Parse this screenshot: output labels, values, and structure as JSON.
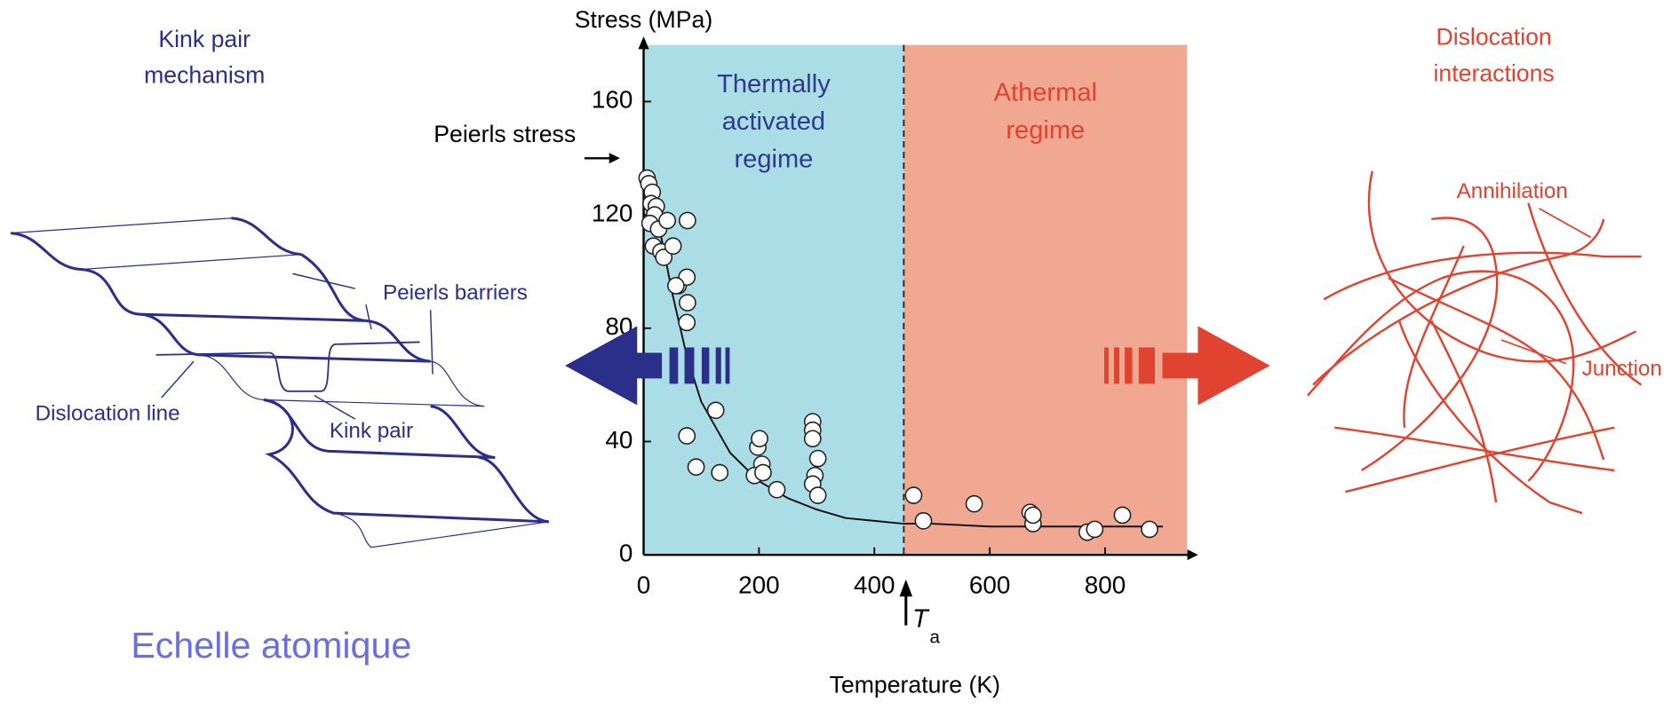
{
  "chart_data": {
    "type": "scatter",
    "y_label": "Stress (MPa)",
    "x_label": "Temperature (K)",
    "xlim": [
      0,
      950
    ],
    "ylim": [
      0,
      180
    ],
    "xticks": [
      0,
      200,
      400,
      600,
      800
    ],
    "yticks": [
      0,
      40,
      80,
      120,
      160
    ],
    "regions": [
      {
        "label": [
          "Thermally",
          "activated",
          "regime"
        ],
        "xlim": [
          0,
          451
        ],
        "color": "#abdde7",
        "text_color": "#2e3a8c"
      },
      {
        "label": [
          "Athermal",
          "regime"
        ],
        "xlim": [
          451,
          942
        ],
        "color": "#f0a893",
        "text_color": "#e0432f"
      }
    ],
    "annotations": [
      {
        "text": "Peierls stress",
        "y": 140
      },
      {
        "text": "T",
        "sub": "a",
        "x": 451
      }
    ],
    "points": {
      "color": "#ffffff",
      "x": [
        6,
        9,
        15,
        13,
        22,
        19,
        11,
        26,
        41,
        17,
        30,
        35,
        51,
        76,
        60,
        75,
        76,
        75,
        56,
        125,
        75,
        91,
        132,
        198,
        201,
        205,
        192,
        207,
        231,
        293,
        293,
        293,
        297,
        302,
        293,
        302,
        468,
        485,
        573,
        670,
        675,
        675,
        769,
        782,
        830,
        877
      ],
      "y": [
        133,
        131,
        128,
        124,
        123,
        120,
        117,
        115,
        118,
        109,
        107,
        105,
        109,
        118,
        95,
        98,
        89,
        82,
        95,
        51,
        42,
        31,
        29,
        38,
        41,
        32,
        28,
        29,
        23,
        47,
        44,
        41,
        28,
        34,
        25,
        21,
        21,
        12,
        18,
        15,
        11,
        14,
        8,
        9,
        14,
        9
      ]
    },
    "curve": {
      "color": "#111111",
      "x": [
        5,
        25,
        50,
        75,
        100,
        150,
        200,
        250,
        300,
        350,
        400,
        450,
        500,
        600,
        700,
        800,
        900
      ],
      "y": [
        135,
        118,
        92,
        70,
        54,
        36,
        26,
        20,
        16,
        13,
        12,
        11,
        11,
        10,
        10,
        10,
        10
      ]
    }
  },
  "left_panel": {
    "title": [
      "Kink pair",
      "mechanism"
    ],
    "labels": [
      "Peierls barriers",
      "Dislocation line",
      "Kink pair"
    ],
    "caption": "Echelle atomique"
  },
  "right_panel": {
    "title": [
      "Dislocation",
      "interactions"
    ],
    "labels": [
      "Annihilation",
      "Junction"
    ]
  }
}
